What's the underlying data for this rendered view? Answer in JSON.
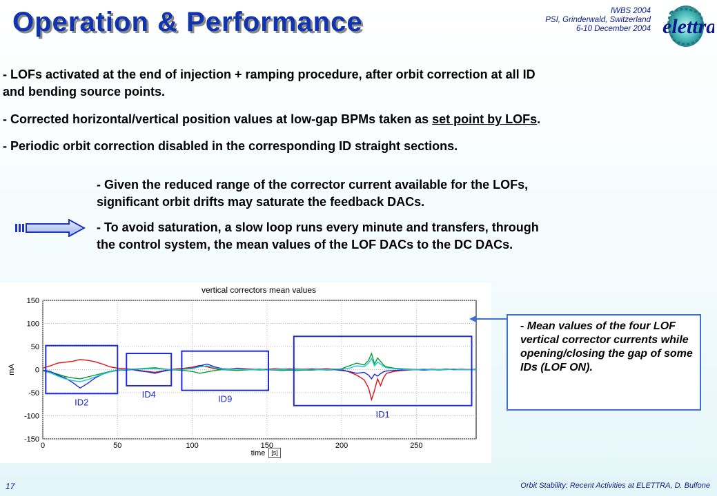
{
  "header": {
    "title": "Operation & Performance",
    "conference": [
      "IWBS 2004",
      "PSI, Grinderwald, Switzerland",
      "6-10 December 2004"
    ],
    "logo_text": "elettra"
  },
  "bullets": {
    "b1_line1": "- LOFs activated at the end of injection + ramping procedure, after orbit correction at all ID",
    "b1_line2": "and bending source points.",
    "b2_prefix": "- Corrected horizontal/vertical position values at low-gap BPMs taken as ",
    "b2_underlined": "set point by LOFs",
    "b2_suffix": ".",
    "b3": "- Periodic orbit correction disabled in the corresponding ID straight sections.",
    "sub1_line1": "- Given the reduced range of the corrector current available for the LOFs,",
    "sub1_line2": "significant orbit drifts may saturate the feedback DACs.",
    "sub2_line1": "- To avoid saturation, a slow loop runs every minute and transfers, through",
    "sub2_line2": "the control system, the mean values of the LOF DACs to the DC DACs."
  },
  "callout": {
    "text": "- Mean values of the four LOF vertical corrector currents while opening/closing the gap of some IDs (LOF ON)."
  },
  "footer": {
    "page_number": "17",
    "text": "Orbit Stability: Recent Activities at ELETTRA, D. Bulfone"
  },
  "colors": {
    "title": "#1033b0",
    "accent_blue": "#3e6fd6",
    "plot_box": "#1f2bd6"
  },
  "chart_data": {
    "type": "line",
    "title": "vertical correctors mean values",
    "xlabel": "time",
    "xunit": "[s]",
    "ylabel": "mA",
    "xlim": [
      0,
      290
    ],
    "ylim": [
      -150,
      150
    ],
    "xticks": [
      0,
      50,
      100,
      150,
      200,
      250
    ],
    "yticks": [
      150,
      100,
      50,
      0,
      -50,
      -100,
      -150
    ],
    "grid": true,
    "series": [
      {
        "color": "#e01010",
        "x": [
          0,
          5,
          10,
          15,
          20,
          25,
          30,
          35,
          40,
          45,
          50,
          55,
          60,
          65,
          70,
          75,
          80,
          85,
          90,
          95,
          100,
          105,
          110,
          115,
          120,
          125,
          130,
          135,
          140,
          145,
          150,
          155,
          160,
          165,
          170,
          175,
          180,
          185,
          190,
          195,
          200,
          205,
          210,
          215,
          218,
          220,
          222,
          224,
          226,
          228,
          230,
          235,
          240,
          245,
          250,
          255,
          260,
          265,
          270,
          275,
          280,
          285,
          290
        ],
        "y": [
          3,
          8,
          14,
          16,
          18,
          22,
          20,
          17,
          12,
          6,
          3,
          2,
          1,
          -2,
          -4,
          -6,
          -3,
          0,
          2,
          3,
          5,
          9,
          6,
          2,
          0,
          1,
          3,
          2,
          1,
          0,
          1,
          2,
          1,
          2,
          1,
          1,
          2,
          1,
          2,
          1,
          0,
          -5,
          -12,
          -22,
          -40,
          -65,
          -45,
          -20,
          -35,
          -18,
          -8,
          -4,
          -2,
          -1,
          0,
          0,
          1,
          0,
          1,
          0,
          1,
          0,
          1
        ]
      },
      {
        "color": "#0a9a2a",
        "x": [
          0,
          5,
          10,
          15,
          20,
          25,
          30,
          35,
          40,
          45,
          50,
          55,
          60,
          65,
          70,
          75,
          80,
          85,
          90,
          95,
          100,
          105,
          110,
          115,
          120,
          125,
          130,
          135,
          140,
          145,
          150,
          155,
          160,
          165,
          170,
          175,
          180,
          185,
          190,
          195,
          200,
          205,
          210,
          215,
          218,
          220,
          222,
          224,
          226,
          228,
          230,
          235,
          240,
          245,
          250,
          255,
          260,
          265,
          270,
          275,
          280,
          285,
          290
        ],
        "y": [
          -2,
          -5,
          -10,
          -15,
          -18,
          -20,
          -16,
          -12,
          -8,
          -4,
          -1,
          0,
          1,
          2,
          3,
          4,
          2,
          0,
          -1,
          -2,
          -4,
          -8,
          -5,
          -2,
          0,
          -1,
          -2,
          -1,
          0,
          -1,
          0,
          -1,
          -2,
          -1,
          -2,
          -1,
          -1,
          0,
          -1,
          0,
          2,
          8,
          14,
          10,
          20,
          35,
          12,
          25,
          18,
          10,
          6,
          3,
          2,
          1,
          0,
          1,
          0,
          -1,
          0,
          1,
          0,
          0,
          0
        ]
      },
      {
        "color": "#1a2ad8",
        "x": [
          0,
          5,
          10,
          15,
          20,
          25,
          30,
          35,
          40,
          45,
          50,
          55,
          60,
          65,
          70,
          75,
          80,
          85,
          90,
          95,
          100,
          105,
          110,
          115,
          120,
          125,
          130,
          135,
          140,
          145,
          150,
          155,
          160,
          165,
          170,
          175,
          180,
          185,
          190,
          195,
          200,
          205,
          210,
          215,
          218,
          220,
          222,
          224,
          226,
          228,
          230,
          235,
          240,
          245,
          250,
          255,
          260,
          265,
          270,
          275,
          280,
          285,
          290
        ],
        "y": [
          -1,
          -4,
          -12,
          -18,
          -28,
          -40,
          -30,
          -18,
          -10,
          -5,
          -2,
          -1,
          0,
          -3,
          -5,
          -8,
          -4,
          -1,
          0,
          1,
          3,
          8,
          12,
          6,
          2,
          1,
          2,
          1,
          0,
          1,
          0,
          0,
          1,
          0,
          1,
          0,
          0,
          1,
          0,
          0,
          -2,
          -4,
          -8,
          -6,
          -12,
          -20,
          -10,
          -14,
          -9,
          -5,
          -3,
          -2,
          -1,
          0,
          0,
          -1,
          0,
          0,
          1,
          0,
          0,
          0,
          0
        ]
      },
      {
        "color": "#19c7d6",
        "x": [
          0,
          5,
          10,
          15,
          20,
          25,
          30,
          35,
          40,
          45,
          50,
          55,
          60,
          65,
          70,
          75,
          80,
          85,
          90,
          95,
          100,
          105,
          110,
          115,
          120,
          125,
          130,
          135,
          140,
          145,
          150,
          155,
          160,
          165,
          170,
          175,
          180,
          185,
          190,
          195,
          200,
          205,
          210,
          215,
          218,
          220,
          222,
          224,
          226,
          228,
          230,
          235,
          240,
          245,
          250,
          255,
          260,
          265,
          270,
          275,
          280,
          285,
          290
        ],
        "y": [
          -3,
          -7,
          -14,
          -20,
          -24,
          -26,
          -22,
          -16,
          -10,
          -5,
          -2,
          0,
          1,
          1,
          2,
          2,
          1,
          0,
          0,
          1,
          2,
          6,
          8,
          4,
          1,
          0,
          1,
          0,
          0,
          0,
          1,
          0,
          0,
          1,
          0,
          0,
          1,
          0,
          0,
          1,
          1,
          3,
          8,
          6,
          14,
          24,
          8,
          16,
          12,
          7,
          4,
          2,
          1,
          0,
          0,
          1,
          0,
          0,
          0,
          1,
          0,
          0,
          0
        ]
      }
    ],
    "annotations": [
      {
        "label": "ID2",
        "box": {
          "x1": 2,
          "x2": 50,
          "y1": -52,
          "y2": 52
        }
      },
      {
        "label": "ID4",
        "box": {
          "x1": 56,
          "x2": 86,
          "y1": -35,
          "y2": 35
        }
      },
      {
        "label": "ID9",
        "box": {
          "x1": 93,
          "x2": 151,
          "y1": -45,
          "y2": 40
        }
      },
      {
        "label": "ID1",
        "box": {
          "x1": 168,
          "x2": 287,
          "y1": -78,
          "y2": 72
        }
      }
    ]
  }
}
